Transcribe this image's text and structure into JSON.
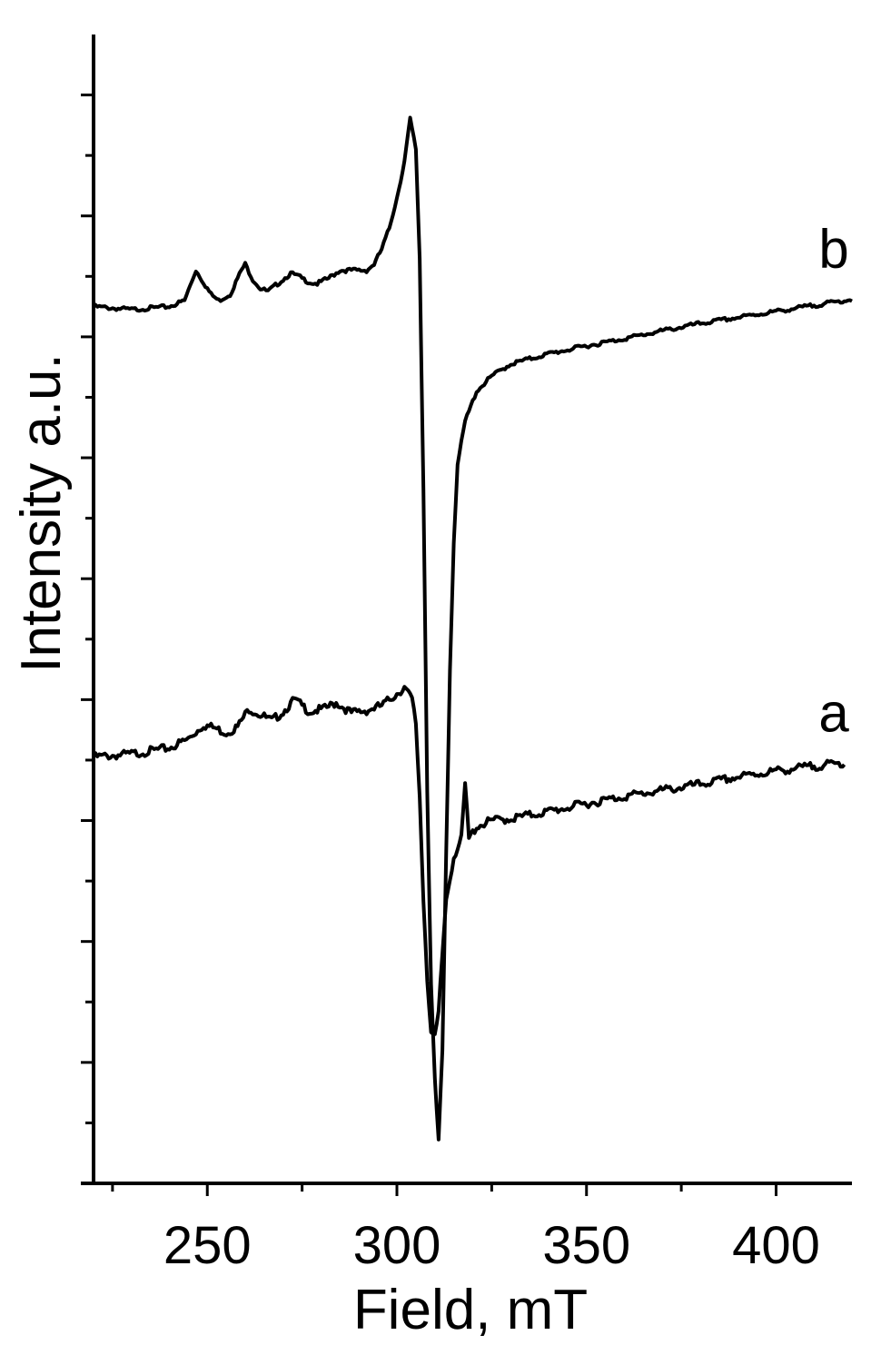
{
  "chart_data": {
    "type": "line",
    "title": "",
    "xlabel": "Field, mT",
    "ylabel": "Intensity a.u.",
    "xlim": [
      220,
      420
    ],
    "ylim": [
      -9,
      10
    ],
    "x_ticks": [
      250,
      300,
      350,
      400
    ],
    "x_minor_ticks": [
      225,
      275,
      325,
      375
    ],
    "y_ticks_major": [
      9,
      7,
      5,
      3,
      1,
      -1,
      -3,
      -5,
      -7
    ],
    "y_ticks_minor": [
      8,
      6,
      4,
      2,
      0,
      -2,
      -4,
      -6,
      -8
    ],
    "y_tick_labels_shown": false,
    "grid": false,
    "line_color": "#000000",
    "series": [
      {
        "name": "b",
        "points": [
          [
            220,
            5.5
          ],
          [
            230,
            5.45
          ],
          [
            240,
            5.5
          ],
          [
            244,
            5.6
          ],
          [
            247,
            6.1
          ],
          [
            249,
            5.9
          ],
          [
            251,
            5.7
          ],
          [
            253,
            5.6
          ],
          [
            256,
            5.7
          ],
          [
            259,
            6.1
          ],
          [
            260,
            6.2
          ],
          [
            262,
            5.95
          ],
          [
            264,
            5.8
          ],
          [
            266,
            5.75
          ],
          [
            269,
            5.9
          ],
          [
            272,
            6.05
          ],
          [
            274,
            6.0
          ],
          [
            277,
            5.9
          ],
          [
            279,
            5.88
          ],
          [
            282,
            5.97
          ],
          [
            285,
            6.1
          ],
          [
            289,
            6.1
          ],
          [
            292,
            6.1
          ],
          [
            294,
            6.2
          ],
          [
            296,
            6.45
          ],
          [
            298,
            6.8
          ],
          [
            300,
            7.3
          ],
          [
            302,
            7.9
          ],
          [
            303.5,
            8.6
          ],
          [
            305,
            8.1
          ],
          [
            306,
            6.3
          ],
          [
            307,
            2.5
          ],
          [
            308,
            -2.5
          ],
          [
            309,
            -5.7
          ],
          [
            310,
            -7.3
          ],
          [
            311,
            -8.3
          ],
          [
            312,
            -6.8
          ],
          [
            313,
            -3.5
          ],
          [
            314,
            -0.5
          ],
          [
            315,
            1.6
          ],
          [
            316,
            2.9
          ],
          [
            318,
            3.6
          ],
          [
            321,
            4.1
          ],
          [
            325,
            4.35
          ],
          [
            330,
            4.55
          ],
          [
            340,
            4.72
          ],
          [
            350,
            4.85
          ],
          [
            360,
            4.97
          ],
          [
            370,
            5.1
          ],
          [
            380,
            5.22
          ],
          [
            390,
            5.32
          ],
          [
            400,
            5.42
          ],
          [
            410,
            5.52
          ],
          [
            420,
            5.62
          ]
        ]
      },
      {
        "name": "a",
        "points": [
          [
            220,
            -1.95
          ],
          [
            230,
            -1.9
          ],
          [
            240,
            -1.8
          ],
          [
            245,
            -1.65
          ],
          [
            249,
            -1.42
          ],
          [
            252,
            -1.47
          ],
          [
            255,
            -1.55
          ],
          [
            258,
            -1.45
          ],
          [
            261,
            -1.15
          ],
          [
            264,
            -1.25
          ],
          [
            267,
            -1.35
          ],
          [
            270,
            -1.2
          ],
          [
            273,
            -1.0
          ],
          [
            277,
            -1.2
          ],
          [
            281,
            -1.15
          ],
          [
            284,
            -1.05
          ],
          [
            288,
            -1.22
          ],
          [
            292,
            -1.18
          ],
          [
            296,
            -1.1
          ],
          [
            299,
            -0.95
          ],
          [
            301,
            -0.85
          ],
          [
            302,
            -0.8
          ],
          [
            304,
            -1.0
          ],
          [
            305,
            -1.4
          ],
          [
            306,
            -2.6
          ],
          [
            307,
            -4.3
          ],
          [
            308,
            -5.6
          ],
          [
            309,
            -6.5
          ],
          [
            310,
            -6.6
          ],
          [
            311,
            -6.2
          ],
          [
            312,
            -5.2
          ],
          [
            313,
            -4.3
          ],
          [
            315,
            -3.6
          ],
          [
            317,
            -3.3
          ],
          [
            318,
            -2.4
          ],
          [
            319,
            -3.3
          ],
          [
            321,
            -3.1
          ],
          [
            325,
            -3.0
          ],
          [
            330,
            -2.97
          ],
          [
            340,
            -2.85
          ],
          [
            350,
            -2.72
          ],
          [
            360,
            -2.6
          ],
          [
            370,
            -2.5
          ],
          [
            380,
            -2.4
          ],
          [
            390,
            -2.28
          ],
          [
            400,
            -2.18
          ],
          [
            410,
            -2.1
          ],
          [
            418,
            -2.05
          ]
        ]
      }
    ]
  }
}
